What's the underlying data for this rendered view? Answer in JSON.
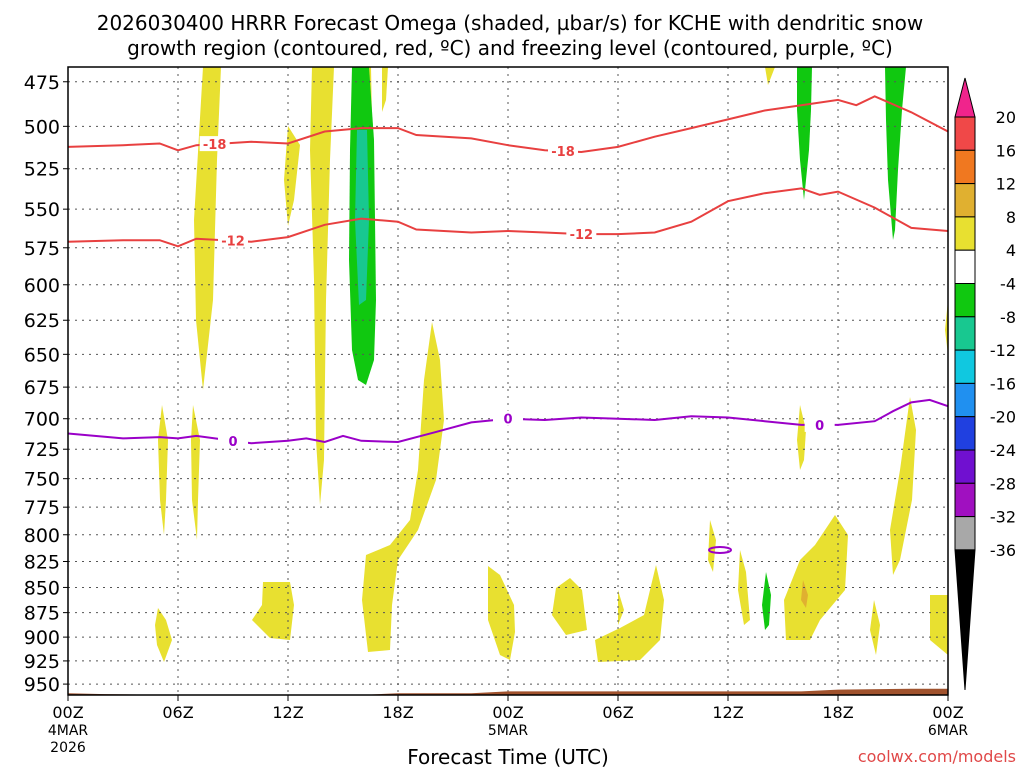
{
  "chart_data": {
    "type": "heatmap",
    "title_line1": "2026030400 HRRR Forecast Omega (shaded, µbar/s) for KCHE with dendritic snow",
    "title_line2": "growth region (contoured, red, ºC) and freezing level (contoured, purple, ºC)",
    "xlabel": "Forecast Time (UTC)",
    "credit": "coolwx.com/models",
    "xlim": [
      0,
      48
    ],
    "x_ticks": [
      {
        "hour": 0,
        "label": "00Z",
        "date1": "4MAR",
        "date2": "2026"
      },
      {
        "hour": 6,
        "label": "06Z"
      },
      {
        "hour": 12,
        "label": "12Z"
      },
      {
        "hour": 18,
        "label": "18Z"
      },
      {
        "hour": 24,
        "label": "00Z",
        "date1": "5MAR"
      },
      {
        "hour": 30,
        "label": "06Z"
      },
      {
        "hour": 36,
        "label": "12Z"
      },
      {
        "hour": 42,
        "label": "18Z"
      },
      {
        "hour": 48,
        "label": "00Z",
        "date1": "6MAR"
      }
    ],
    "ylim_hpa": [
      467,
      962
    ],
    "y_ticks": [
      "475",
      "500",
      "525",
      "550",
      "575",
      "600",
      "625",
      "650",
      "675",
      "700",
      "725",
      "750",
      "775",
      "800",
      "825",
      "850",
      "875",
      "900",
      "925",
      "950"
    ],
    "colorbar": {
      "labels": [
        "20",
        "16",
        "12",
        "8",
        "4",
        "-4",
        "-8",
        "-12",
        "-16",
        "-20",
        "-24",
        "-28",
        "-32",
        "-36"
      ],
      "colors": [
        "#f0248c",
        "#f04848",
        "#f07820",
        "#e0b030",
        "#e8e030",
        "#ffffff",
        "#10c810",
        "#18c890",
        "#10c8e0",
        "#2090f0",
        "#2040e0",
        "#7010d0",
        "#a010c0",
        "#a8a8a8",
        "#000000"
      ]
    },
    "isotherm_labels": {
      "minus18": "-18",
      "minus12": "-12",
      "freezing": "0"
    },
    "minus18_line": [
      [
        0,
        512
      ],
      [
        3,
        511
      ],
      [
        5,
        510
      ],
      [
        6,
        514
      ],
      [
        7,
        511
      ],
      [
        10,
        509
      ],
      [
        12,
        510
      ],
      [
        14,
        503
      ],
      [
        16,
        501
      ],
      [
        18,
        501
      ],
      [
        19,
        505
      ],
      [
        22,
        507
      ],
      [
        24,
        511
      ],
      [
        26,
        514
      ],
      [
        28,
        515
      ],
      [
        30,
        512
      ],
      [
        32,
        506
      ],
      [
        34,
        501
      ],
      [
        36,
        496
      ],
      [
        38,
        491
      ],
      [
        40,
        488
      ],
      [
        42,
        485
      ],
      [
        43,
        488
      ],
      [
        44,
        483
      ],
      [
        46,
        492
      ],
      [
        48,
        503
      ]
    ],
    "minus12_line": [
      [
        0,
        571
      ],
      [
        3,
        570
      ],
      [
        5,
        570
      ],
      [
        6,
        574
      ],
      [
        7,
        569
      ],
      [
        10,
        571
      ],
      [
        12,
        568
      ],
      [
        14,
        560
      ],
      [
        16,
        556
      ],
      [
        18,
        558
      ],
      [
        19,
        563
      ],
      [
        22,
        565
      ],
      [
        24,
        564
      ],
      [
        26,
        565
      ],
      [
        28,
        566
      ],
      [
        30,
        566
      ],
      [
        32,
        565
      ],
      [
        34,
        558
      ],
      [
        36,
        545
      ],
      [
        38,
        540
      ],
      [
        40,
        537
      ],
      [
        41,
        541
      ],
      [
        42,
        539
      ],
      [
        44,
        549
      ],
      [
        46,
        562
      ],
      [
        48,
        564
      ]
    ],
    "freezing_line": [
      [
        0,
        712
      ],
      [
        3,
        716
      ],
      [
        5,
        715
      ],
      [
        6,
        716
      ],
      [
        7,
        714
      ],
      [
        10,
        720
      ],
      [
        12,
        718
      ],
      [
        13,
        716
      ],
      [
        14,
        719
      ],
      [
        15,
        714
      ],
      [
        16,
        718
      ],
      [
        18,
        719
      ],
      [
        20,
        711
      ],
      [
        22,
        703
      ],
      [
        24,
        700
      ],
      [
        26,
        701
      ],
      [
        28,
        699
      ],
      [
        30,
        700
      ],
      [
        32,
        701
      ],
      [
        34,
        698
      ],
      [
        36,
        699
      ],
      [
        38,
        702
      ],
      [
        40,
        705
      ],
      [
        42,
        705
      ],
      [
        44,
        702
      ],
      [
        45,
        694
      ],
      [
        46,
        687
      ],
      [
        47,
        685
      ],
      [
        48,
        690
      ]
    ],
    "terrain_line": [
      [
        0,
        960
      ],
      [
        2,
        961
      ],
      [
        6,
        962
      ],
      [
        12,
        962
      ],
      [
        16,
        962
      ],
      [
        18,
        960
      ],
      [
        22,
        960
      ],
      [
        24,
        958
      ],
      [
        28,
        958
      ],
      [
        32,
        958
      ],
      [
        36,
        958
      ],
      [
        40,
        958
      ],
      [
        42,
        956
      ],
      [
        46,
        955
      ],
      [
        48,
        955
      ]
    ]
  }
}
